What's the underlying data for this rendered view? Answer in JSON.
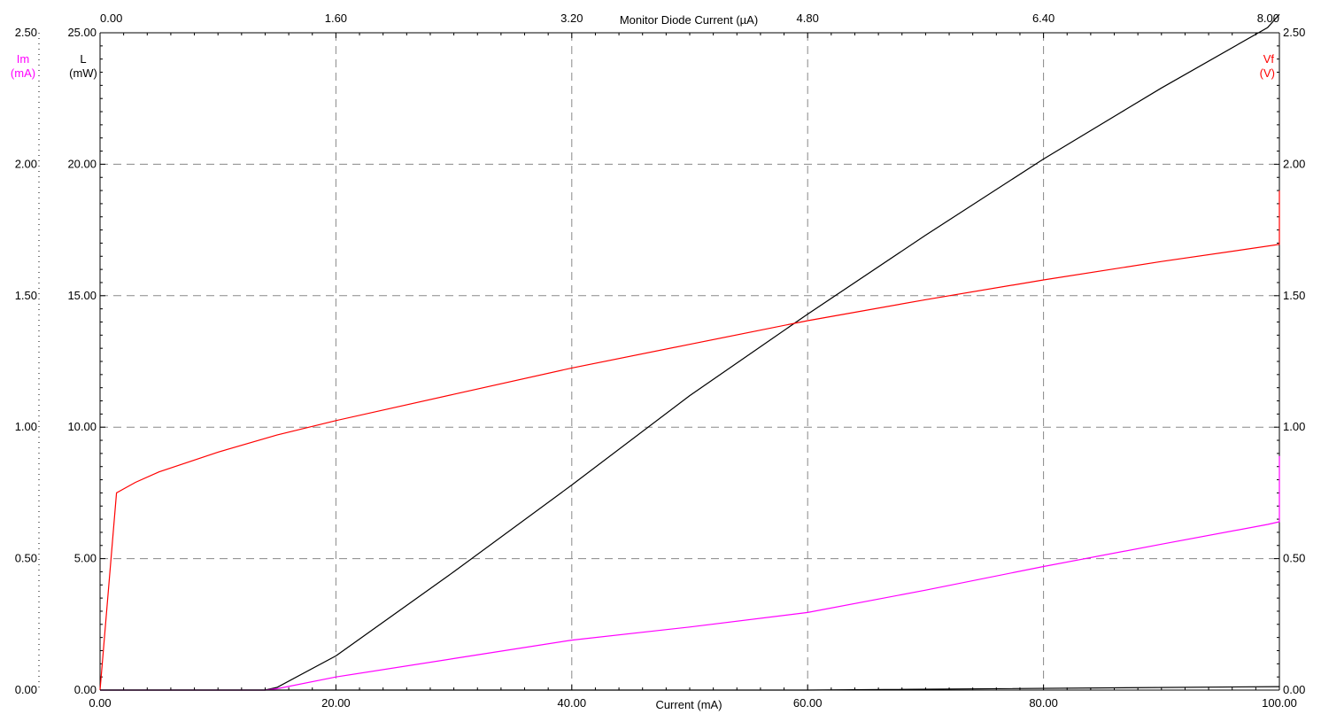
{
  "chart_data": {
    "type": "line",
    "xlabel": "Current (mA)",
    "x2label": "Monitor Diode Current (µA)",
    "x_ticks": [
      "0.00",
      "20.00",
      "40.00",
      "60.00",
      "80.00",
      "100.00"
    ],
    "x_range": [
      0,
      100
    ],
    "x2_ticks": [
      "0.00",
      "1.60",
      "3.20",
      "4.80",
      "6.40",
      "8.00"
    ],
    "x2_range": [
      0,
      8
    ],
    "axes": {
      "L": {
        "label_top": "L",
        "label_bottom": "(mW)",
        "color": "#000000",
        "range": [
          0,
          25
        ],
        "ticks": [
          "0.00",
          "5.00",
          "10.00",
          "15.00",
          "20.00",
          "25.00"
        ]
      },
      "Im": {
        "label_top": "Im",
        "label_bottom": "(mA)",
        "color": "#ff00ff",
        "range": [
          0,
          2.5
        ],
        "ticks": [
          "0.00",
          "0.50",
          "1.00",
          "1.50",
          "2.00",
          "2.50"
        ]
      },
      "Vf": {
        "label_top": "Vf",
        "label_bottom": "(V)",
        "color": "#ff0000",
        "range": [
          0,
          2.5
        ],
        "ticks": [
          "0.00",
          "0.50",
          "1.00",
          "1.50",
          "2.00",
          "2.50"
        ]
      }
    },
    "grid": true,
    "series": [
      {
        "axis": "L",
        "color": "#000000",
        "points": [
          [
            0,
            0
          ],
          [
            14,
            0
          ],
          [
            15,
            0.1
          ],
          [
            20,
            1.3
          ],
          [
            30,
            4.5
          ],
          [
            40,
            7.8
          ],
          [
            50,
            11.2
          ],
          [
            60,
            14.3
          ],
          [
            70,
            17.3
          ],
          [
            80,
            20.2
          ],
          [
            90,
            22.9
          ],
          [
            99,
            25.2
          ],
          [
            100,
            25.7
          ]
        ]
      },
      {
        "axis": "Im",
        "color": "#ff00ff",
        "points": [
          [
            0,
            0
          ],
          [
            14,
            0
          ],
          [
            15,
            0.005
          ],
          [
            20,
            0.05
          ],
          [
            30,
            0.12
          ],
          [
            40,
            0.19
          ],
          [
            50,
            0.24
          ],
          [
            60,
            0.295
          ],
          [
            70,
            0.38
          ],
          [
            80,
            0.47
          ],
          [
            90,
            0.555
          ],
          [
            99,
            0.63
          ],
          [
            100,
            0.64
          ],
          [
            100,
            0.89
          ]
        ]
      },
      {
        "axis": "Vf",
        "color": "#ff0000",
        "points": [
          [
            0,
            0
          ],
          [
            1.4,
            0.75
          ],
          [
            3,
            0.79
          ],
          [
            5,
            0.83
          ],
          [
            7,
            0.86
          ],
          [
            10,
            0.905
          ],
          [
            15,
            0.97
          ],
          [
            20,
            1.025
          ],
          [
            30,
            1.125
          ],
          [
            40,
            1.225
          ],
          [
            50,
            1.315
          ],
          [
            60,
            1.405
          ],
          [
            70,
            1.485
          ],
          [
            80,
            1.56
          ],
          [
            90,
            1.63
          ],
          [
            100,
            1.695
          ],
          [
            100,
            1.9
          ]
        ]
      },
      {
        "axis": "Vf",
        "color": "#000000",
        "points": [
          [
            0,
            0
          ],
          [
            60,
            0
          ],
          [
            100,
            0.013
          ]
        ]
      }
    ]
  }
}
